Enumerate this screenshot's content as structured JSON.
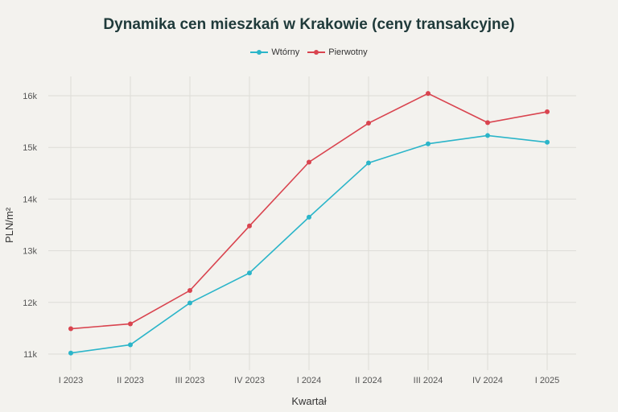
{
  "chart_data": {
    "type": "line",
    "title": "Dynamika cen mieszkań w Krakowie (ceny transakcyjne)",
    "xlabel": "Kwartał",
    "ylabel": "PLN/m²",
    "categories": [
      "I 2023",
      "II 2023",
      "III 2023",
      "IV 2023",
      "I 2024",
      "II 2024",
      "III 2024",
      "IV 2024",
      "I 2025"
    ],
    "ylim": [
      10850,
      16350
    ],
    "yticks": [
      11000,
      12000,
      13000,
      14000,
      15000,
      16000
    ],
    "ytick_labels": [
      "11k",
      "12k",
      "13k",
      "14k",
      "15k",
      "16k"
    ],
    "grid": true,
    "legend_position": "top-center",
    "series": [
      {
        "name": "Wtórny",
        "color": "#2bb5c9",
        "values": [
          11020,
          11180,
          11990,
          12570,
          13650,
          14700,
          15070,
          15230,
          15100
        ]
      },
      {
        "name": "Pierwotny",
        "color": "#d9444f",
        "values": [
          11490,
          11585,
          12230,
          13480,
          14715,
          15470,
          16045,
          15480,
          15690
        ]
      }
    ]
  }
}
